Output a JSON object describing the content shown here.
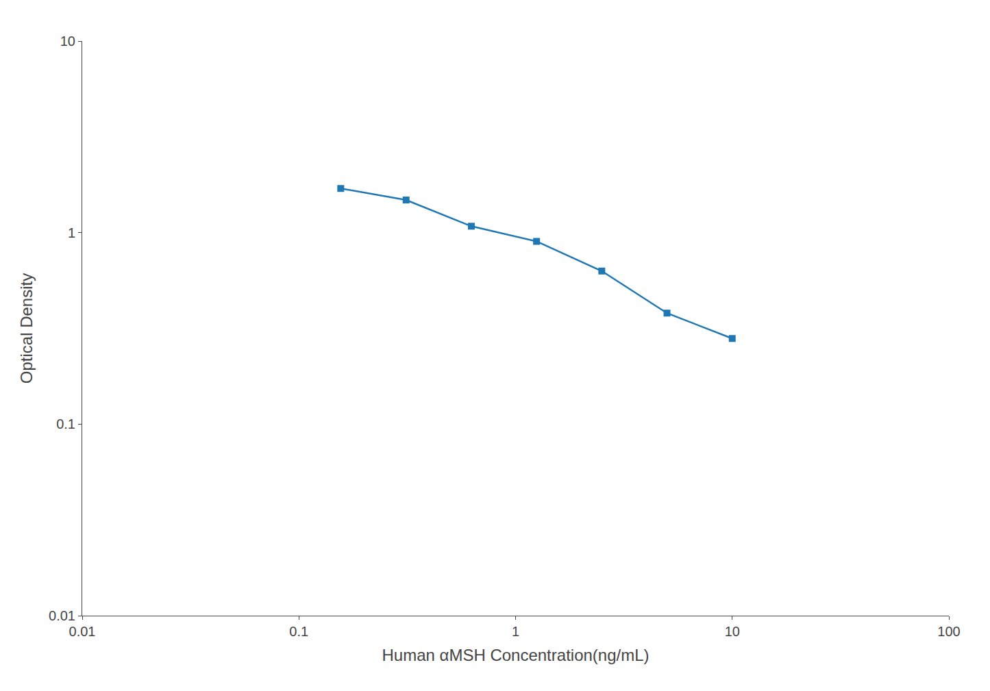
{
  "chart_data": {
    "type": "line",
    "xlabel": "Human αMSH Concentration(ng/mL)",
    "ylabel": "Optical Density",
    "x": [
      0.156,
      0.3125,
      0.625,
      1.25,
      2.5,
      5.0,
      10.0
    ],
    "values": [
      1.7,
      1.48,
      1.08,
      0.9,
      0.63,
      0.38,
      0.28
    ],
    "xlim": [
      0.01,
      100
    ],
    "ylim": [
      0.01,
      10
    ],
    "xticks": [
      0.01,
      0.1,
      1,
      10,
      100
    ],
    "yticks": [
      0.01,
      0.1,
      1,
      10
    ],
    "log": true,
    "grid": false,
    "marker": "square",
    "line_style": "solid"
  }
}
